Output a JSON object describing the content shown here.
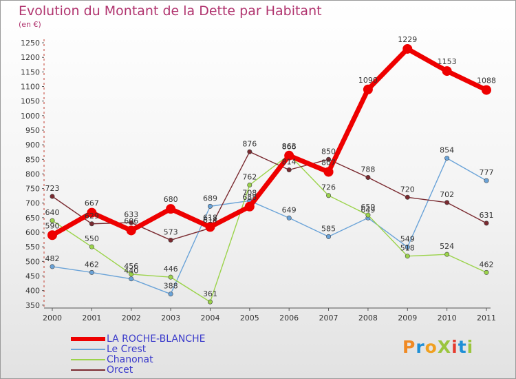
{
  "title": "Evolution du Montant de la Dette par Habitant",
  "unit_label": "(en €)",
  "logo": {
    "text": "ProXiti",
    "colors": [
      "#f08a24",
      "#1e8fd6",
      "#f0a020",
      "#9bc53d",
      "#e63b2e",
      "#1e8fd6",
      "#9bc53d"
    ]
  },
  "chart_data": {
    "type": "line",
    "title": "Evolution du Montant de la Dette par Habitant",
    "subtitle": "(en €)",
    "x": [
      "2000",
      "2001",
      "2002",
      "2003",
      "2004",
      "2005",
      "2006",
      "2007",
      "2008",
      "2009",
      "2010",
      "2011"
    ],
    "yticks": [
      350,
      400,
      450,
      500,
      550,
      600,
      650,
      700,
      750,
      800,
      850,
      900,
      950,
      1000,
      1050,
      1100,
      1150,
      1200,
      1250
    ],
    "ylim": [
      340,
      1262
    ],
    "grid": false,
    "legend_position": "bottom-left",
    "series": [
      {
        "name": "LA ROCHE-BLANCHE",
        "color": "#ee0000",
        "width": 7,
        "marker": 7,
        "values": [
          590,
          667,
          606,
          680,
          618,
          688,
          863,
          807,
          1090,
          1229,
          1153,
          1088
        ]
      },
      {
        "name": "Le Crest",
        "color": "#6aa3d8",
        "width": 1.4,
        "marker": 3.2,
        "values": [
          482,
          462,
          440,
          388,
          689,
          708,
          649,
          585,
          649,
          549,
          854,
          777
        ]
      },
      {
        "name": "Chanonat",
        "color": "#9bd34a",
        "width": 1.4,
        "marker": 3.2,
        "values": [
          640,
          550,
          456,
          446,
          361,
          762,
          866,
          726,
          659,
          518,
          524,
          462
        ]
      },
      {
        "name": "Orcet",
        "color": "#7a2a30",
        "width": 1.4,
        "marker": 3.2,
        "values": [
          723,
          629,
          633,
          573,
          614,
          876,
          814,
          850,
          788,
          720,
          702,
          631
        ]
      }
    ]
  }
}
